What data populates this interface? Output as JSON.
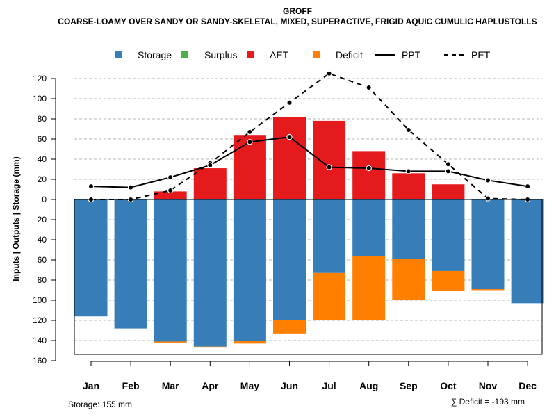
{
  "chart_data": {
    "type": "bar",
    "title": "GROFF",
    "subtitle": "COARSE-LOAMY OVER SANDY OR SANDY-SKELETAL, MIXED, SUPERACTIVE, FRIGID AQUIC CUMULIC HAPLUSTOLLS",
    "ylabel": "Inputs | Outputs | Storage     (mm)",
    "categories": [
      "Jan",
      "Feb",
      "Mar",
      "Apr",
      "May",
      "Jun",
      "Jul",
      "Aug",
      "Sep",
      "Oct",
      "Nov",
      "Dec"
    ],
    "ylim": [
      -160,
      130
    ],
    "yticks": [
      120,
      100,
      80,
      60,
      40,
      20,
      0,
      -20,
      -40,
      -60,
      -80,
      -100,
      -120,
      -140,
      -160
    ],
    "ytick_labels": [
      "120",
      "100",
      "80",
      "60",
      "40",
      "20",
      "0",
      "20",
      "40",
      "60",
      "80",
      "100",
      "120",
      "140",
      "160"
    ],
    "grid": true,
    "legend": [
      {
        "name": "Storage",
        "kind": "box",
        "color": "#377EB8"
      },
      {
        "name": "Surplus",
        "kind": "box",
        "color": "#4DAF4A"
      },
      {
        "name": "AET",
        "kind": "box",
        "color": "#E41A1C"
      },
      {
        "name": "Deficit",
        "kind": "box",
        "color": "#FF7F00"
      },
      {
        "name": "PPT",
        "kind": "solid",
        "color": "#000000"
      },
      {
        "name": "PET",
        "kind": "dashed",
        "color": "#000000"
      }
    ],
    "series": [
      {
        "name": "Storage",
        "color": "#377EB8",
        "values": [
          -116,
          -128,
          -141,
          -146,
          -140,
          -120,
          -73,
          -56,
          -59,
          -71,
          -89,
          -103
        ]
      },
      {
        "name": "Deficit",
        "color": "#FF7F00",
        "values": [
          0,
          0,
          -1,
          -1,
          -3,
          -13,
          -47,
          -64,
          -41,
          -20,
          -1,
          0
        ]
      },
      {
        "name": "Surplus",
        "color": "#4DAF4A",
        "values": [
          0,
          0,
          0,
          0,
          0,
          0,
          0,
          0,
          0,
          0,
          0,
          0
        ]
      },
      {
        "name": "AET",
        "color": "#E41A1C",
        "values": [
          0,
          0,
          8,
          31,
          64,
          82,
          78,
          48,
          26,
          15,
          0,
          0
        ]
      },
      {
        "name": "PPT",
        "color": "#000000",
        "style": "solid",
        "values": [
          13,
          12,
          22,
          34,
          57,
          62,
          32,
          31,
          28,
          28,
          19,
          13
        ]
      },
      {
        "name": "PET",
        "color": "#000000",
        "style": "dashed",
        "values": [
          0,
          0,
          9,
          36,
          67,
          96,
          125,
          111,
          69,
          35,
          1,
          0
        ]
      }
    ],
    "storage_label": "Storage: 155 mm",
    "deficit_label": "∑ Deficit = -193 mm"
  }
}
